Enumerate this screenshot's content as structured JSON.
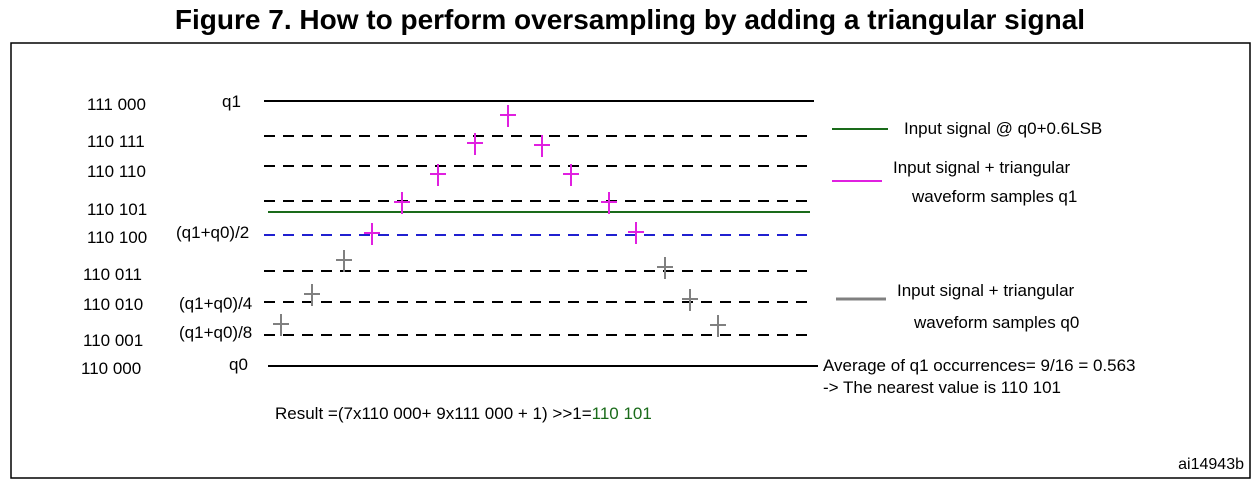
{
  "title": "Figure 7. How to perform oversampling by adding a triangular signal",
  "codes": [
    "111 000",
    "110 111",
    "110 110",
    "110 101",
    "110 100",
    "110 011",
    "110 010",
    "110 001",
    "110 000"
  ],
  "level_labels": {
    "q1": "q1",
    "half": "(q1+q0)/2",
    "quarter": "(q1+q0)/4",
    "eighth": "(q1+q0)/8",
    "q0": "q0"
  },
  "legend": {
    "input_signal": "Input signal  @ q0+0.6LSB",
    "q1_samples_line1": "Input signal  + triangular",
    "q1_samples_line2": "waveform samples q1",
    "q0_samples_line1": "Input signal  + triangular",
    "q0_samples_line2": "waveform samples q0"
  },
  "average_line1": "Average of q1 occurrences= 9/16 = 0.563",
  "average_line2": "-> The nearest value is 110 101",
  "result_prefix": "Result =(7x110 000+ 9x111 000 + 1) >>1=",
  "result_value": "110 101",
  "figure_id": "ai14943b",
  "colors": {
    "input_signal": "#1a6b1a",
    "q1_samples": "#e020e0",
    "q0_samples": "#808080",
    "half_line": "#2020d0",
    "result_value": "#1a6b1a"
  }
}
